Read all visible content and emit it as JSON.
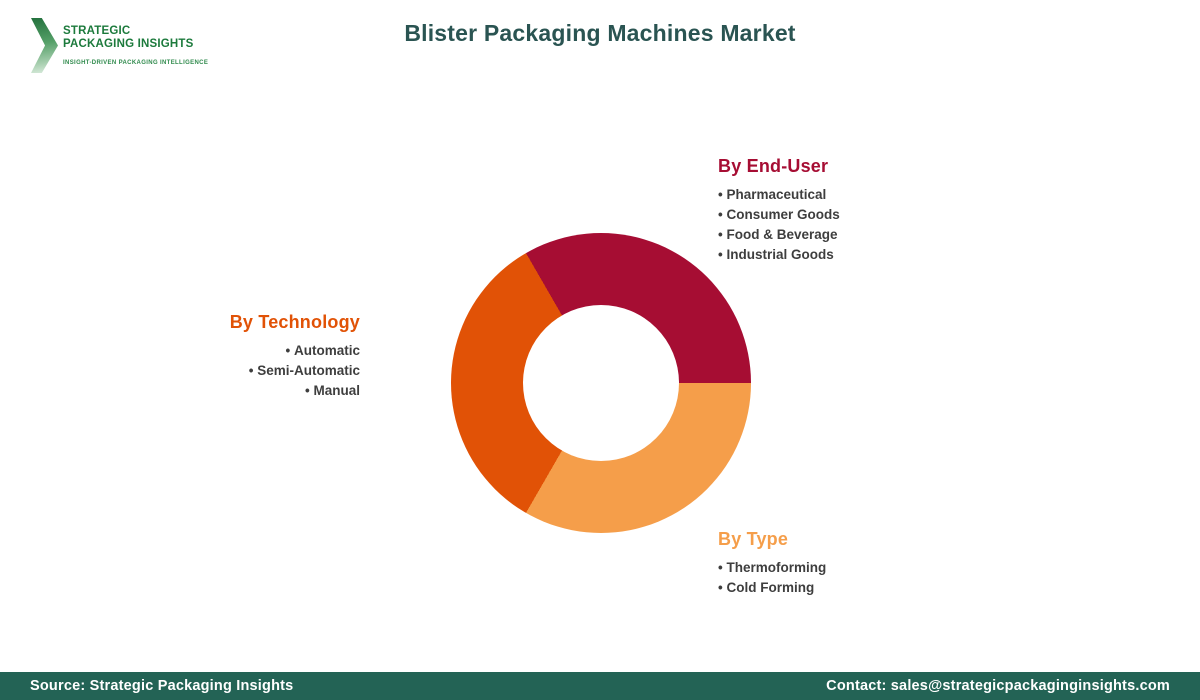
{
  "brand": {
    "name_line1": "STRATEGIC",
    "name_line2": "PACKAGING INSIGHTS",
    "tagline": "INSIGHT-DRIVEN PACKAGING INTELLIGENCE",
    "logo_green": "#1C7A3C"
  },
  "header": {
    "title": "Blister Packaging Machines Market",
    "title_color": "#2A5452"
  },
  "chart_data": {
    "type": "pie",
    "subtype": "donut",
    "title": "Blister Packaging Machines Market",
    "legend_position": "around-chart",
    "inner_radius_ratio": 0.52,
    "start_angle_deg": -30,
    "draw_order": [
      0,
      2,
      1
    ],
    "segments": [
      {
        "label": "By End-User",
        "value": 33.33,
        "color": "#A60D33",
        "items": [
          "Pharmaceutical",
          "Consumer Goods",
          "Food & Beverage",
          "Industrial Goods"
        ]
      },
      {
        "label": "By Technology",
        "value": 33.33,
        "color": "#E15206",
        "items": [
          "Automatic",
          "Semi-Automatic",
          "Manual"
        ]
      },
      {
        "label": "By Type",
        "value": 33.34,
        "color": "#F59E4A",
        "items": [
          "Thermoforming",
          "Cold Forming"
        ]
      }
    ]
  },
  "footer": {
    "source": "Source: Strategic Packaging Insights",
    "contact": "Contact: sales@strategicpackaginginsights.com",
    "bar_color": "#236355"
  }
}
